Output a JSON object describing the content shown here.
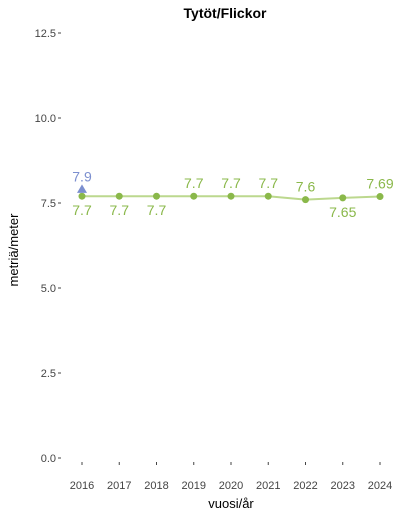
{
  "chart_data": {
    "type": "line",
    "title": "Tytöt/Flickor",
    "xlabel": "vuosi/år",
    "ylabel": "metriä/meter",
    "x": [
      2016,
      2017,
      2018,
      2019,
      2020,
      2021,
      2022,
      2023,
      2024
    ],
    "ylim": [
      0,
      12.5
    ],
    "y_ticks": [
      "0.0",
      "2.5",
      "5.0",
      "7.5",
      "10.0",
      "12.5"
    ],
    "grid": false,
    "series": [
      {
        "values": [
          7.7,
          7.7,
          7.7,
          7.7,
          7.7,
          7.7,
          7.6,
          7.65,
          7.69
        ],
        "labels": [
          "7.7",
          "7.7",
          "7.7",
          "7.7",
          "7.7",
          "7.7",
          "7.6",
          "7.65",
          "7.69"
        ],
        "label_side": [
          "below",
          "below",
          "below",
          "above",
          "above",
          "above",
          "above",
          "below",
          "above"
        ],
        "color": "#8ab84a",
        "line_color": "#bcd88e",
        "marker": "circle"
      },
      {
        "values": [
          7.9
        ],
        "x": [
          2016
        ],
        "labels": [
          "7.9"
        ],
        "label_side": [
          "above"
        ],
        "color": "#7c8fcf",
        "marker": "triangle"
      }
    ]
  }
}
